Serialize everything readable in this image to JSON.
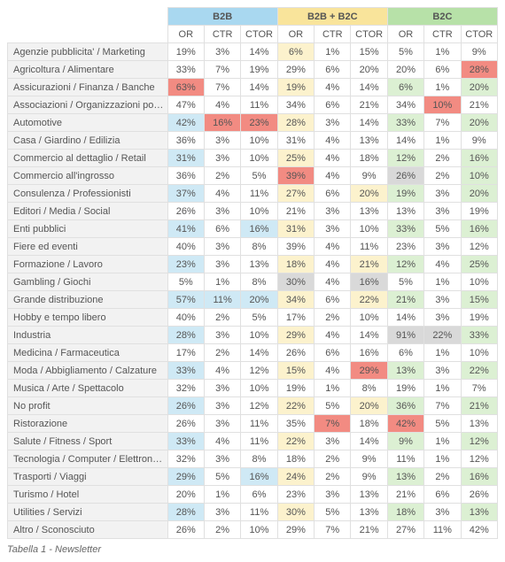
{
  "caption": "Tabella 1 - Newsletter",
  "colors": {
    "group_b2b": "#a9d8f0",
    "group_b2b_b2c": "#f9e49b",
    "group_b2c": "#b7e1a8",
    "row_label_bg": "#f2f2f2",
    "hl_b2b": "#cfe9f5",
    "hl_b2b_b2c": "#fcf2cd",
    "hl_b2c": "#dcf0d3",
    "hl_red": "#f28b82",
    "hl_gray": "#d9d9d9",
    "border": "#e0e0e0",
    "text": "#555555"
  },
  "groups": [
    {
      "label": "B2B",
      "bg": "#a9d8f0",
      "hl": "#cfe9f5"
    },
    {
      "label": "B2B + B2C",
      "bg": "#f9e49b",
      "hl": "#fcf2cd"
    },
    {
      "label": "B2C",
      "bg": "#b7e1a8",
      "hl": "#dcf0d3"
    }
  ],
  "metrics": [
    "OR",
    "CTR",
    "CTOR"
  ],
  "rows": [
    {
      "label": "Agenzie pubblicita' / Marketing",
      "vals": [
        "19%",
        "3%",
        "14%",
        "6%",
        "1%",
        "15%",
        "5%",
        "1%",
        "9%"
      ],
      "hl": [
        0,
        0,
        0,
        1,
        0,
        0,
        0,
        0,
        0
      ]
    },
    {
      "label": "Agricoltura / Alimentare",
      "vals": [
        "33%",
        "7%",
        "19%",
        "29%",
        "6%",
        "20%",
        "20%",
        "6%",
        "28%"
      ],
      "hl": [
        0,
        0,
        0,
        0,
        0,
        0,
        0,
        0,
        2
      ]
    },
    {
      "label": "Assicurazioni / Finanza / Banche",
      "vals": [
        "63%",
        "7%",
        "14%",
        "19%",
        "4%",
        "14%",
        "6%",
        "1%",
        "20%"
      ],
      "hl": [
        2,
        0,
        0,
        1,
        0,
        0,
        1,
        0,
        1
      ]
    },
    {
      "label": "Associazioni / Organizzazioni politiche",
      "vals": [
        "47%",
        "4%",
        "11%",
        "34%",
        "6%",
        "21%",
        "34%",
        "10%",
        "21%"
      ],
      "hl": [
        0,
        0,
        0,
        0,
        0,
        0,
        0,
        2,
        0
      ]
    },
    {
      "label": "Automotive",
      "vals": [
        "42%",
        "16%",
        "23%",
        "28%",
        "3%",
        "14%",
        "33%",
        "7%",
        "20%"
      ],
      "hl": [
        1,
        2,
        2,
        1,
        0,
        0,
        1,
        0,
        1
      ]
    },
    {
      "label": "Casa / Giardino / Edilizia",
      "vals": [
        "36%",
        "3%",
        "10%",
        "31%",
        "4%",
        "13%",
        "14%",
        "1%",
        "9%"
      ],
      "hl": [
        0,
        0,
        0,
        0,
        0,
        0,
        0,
        0,
        0
      ]
    },
    {
      "label": "Commercio al dettaglio / Retail",
      "vals": [
        "31%",
        "3%",
        "10%",
        "25%",
        "4%",
        "18%",
        "12%",
        "2%",
        "16%"
      ],
      "hl": [
        1,
        0,
        0,
        1,
        0,
        0,
        1,
        0,
        1
      ]
    },
    {
      "label": "Commercio all'ingrosso",
      "vals": [
        "36%",
        "2%",
        "5%",
        "39%",
        "4%",
        "9%",
        "26%",
        "2%",
        "10%"
      ],
      "hl": [
        0,
        0,
        0,
        2,
        0,
        0,
        3,
        0,
        1
      ]
    },
    {
      "label": "Consulenza / Professionisti",
      "vals": [
        "37%",
        "4%",
        "11%",
        "27%",
        "6%",
        "20%",
        "19%",
        "3%",
        "20%"
      ],
      "hl": [
        1,
        0,
        0,
        1,
        0,
        1,
        1,
        0,
        1
      ]
    },
    {
      "label": "Editori / Media / Social",
      "vals": [
        "26%",
        "3%",
        "10%",
        "21%",
        "3%",
        "13%",
        "13%",
        "3%",
        "19%"
      ],
      "hl": [
        0,
        0,
        0,
        0,
        0,
        0,
        0,
        0,
        0
      ]
    },
    {
      "label": "Enti pubblici",
      "vals": [
        "41%",
        "6%",
        "16%",
        "31%",
        "3%",
        "10%",
        "33%",
        "5%",
        "16%"
      ],
      "hl": [
        1,
        0,
        1,
        1,
        0,
        0,
        1,
        0,
        1
      ]
    },
    {
      "label": "Fiere ed eventi",
      "vals": [
        "40%",
        "3%",
        "8%",
        "39%",
        "4%",
        "11%",
        "23%",
        "3%",
        "12%"
      ],
      "hl": [
        0,
        0,
        0,
        0,
        0,
        0,
        0,
        0,
        0
      ]
    },
    {
      "label": "Formazione / Lavoro",
      "vals": [
        "23%",
        "3%",
        "13%",
        "18%",
        "4%",
        "21%",
        "12%",
        "4%",
        "25%"
      ],
      "hl": [
        1,
        0,
        0,
        1,
        0,
        1,
        1,
        0,
        1
      ]
    },
    {
      "label": "Gambling / Giochi",
      "vals": [
        "5%",
        "1%",
        "8%",
        "30%",
        "4%",
        "16%",
        "5%",
        "1%",
        "10%"
      ],
      "hl": [
        0,
        0,
        0,
        3,
        0,
        3,
        0,
        0,
        0
      ]
    },
    {
      "label": "Grande distribuzione",
      "vals": [
        "57%",
        "11%",
        "20%",
        "34%",
        "6%",
        "22%",
        "21%",
        "3%",
        "15%"
      ],
      "hl": [
        1,
        1,
        1,
        1,
        0,
        1,
        1,
        0,
        1
      ]
    },
    {
      "label": "Hobby e tempo libero",
      "vals": [
        "40%",
        "2%",
        "5%",
        "17%",
        "2%",
        "10%",
        "14%",
        "3%",
        "19%"
      ],
      "hl": [
        0,
        0,
        0,
        0,
        0,
        0,
        0,
        0,
        0
      ]
    },
    {
      "label": "Industria",
      "vals": [
        "28%",
        "3%",
        "10%",
        "29%",
        "4%",
        "14%",
        "91%",
        "22%",
        "33%"
      ],
      "hl": [
        1,
        0,
        0,
        1,
        0,
        0,
        3,
        3,
        1
      ]
    },
    {
      "label": "Medicina / Farmaceutica",
      "vals": [
        "17%",
        "2%",
        "14%",
        "26%",
        "6%",
        "16%",
        "6%",
        "1%",
        "10%"
      ],
      "hl": [
        0,
        0,
        0,
        0,
        0,
        0,
        0,
        0,
        0
      ]
    },
    {
      "label": "Moda / Abbigliamento / Calzature",
      "vals": [
        "33%",
        "4%",
        "12%",
        "15%",
        "4%",
        "29%",
        "13%",
        "3%",
        "22%"
      ],
      "hl": [
        1,
        0,
        0,
        1,
        0,
        2,
        1,
        0,
        1
      ]
    },
    {
      "label": "Musica / Arte / Spettacolo",
      "vals": [
        "32%",
        "3%",
        "10%",
        "19%",
        "1%",
        "8%",
        "19%",
        "1%",
        "7%"
      ],
      "hl": [
        0,
        0,
        0,
        0,
        0,
        0,
        0,
        0,
        0
      ]
    },
    {
      "label": "No profit",
      "vals": [
        "26%",
        "3%",
        "12%",
        "22%",
        "5%",
        "20%",
        "36%",
        "7%",
        "21%"
      ],
      "hl": [
        1,
        0,
        0,
        1,
        0,
        1,
        1,
        0,
        1
      ]
    },
    {
      "label": "Ristorazione",
      "vals": [
        "26%",
        "3%",
        "11%",
        "35%",
        "7%",
        "18%",
        "42%",
        "5%",
        "13%"
      ],
      "hl": [
        0,
        0,
        0,
        0,
        2,
        0,
        2,
        0,
        0
      ]
    },
    {
      "label": "Salute / Fitness / Sport",
      "vals": [
        "33%",
        "4%",
        "11%",
        "22%",
        "3%",
        "14%",
        "9%",
        "1%",
        "12%"
      ],
      "hl": [
        1,
        0,
        0,
        1,
        0,
        0,
        1,
        0,
        1
      ]
    },
    {
      "label": "Tecnologia / Computer / Elettronica",
      "vals": [
        "32%",
        "3%",
        "8%",
        "18%",
        "2%",
        "9%",
        "11%",
        "1%",
        "12%"
      ],
      "hl": [
        0,
        0,
        0,
        0,
        0,
        0,
        0,
        0,
        0
      ]
    },
    {
      "label": "Trasporti / Viaggi",
      "vals": [
        "29%",
        "5%",
        "16%",
        "24%",
        "2%",
        "9%",
        "13%",
        "2%",
        "16%"
      ],
      "hl": [
        1,
        0,
        1,
        1,
        0,
        0,
        1,
        0,
        1
      ]
    },
    {
      "label": "Turismo / Hotel",
      "vals": [
        "20%",
        "1%",
        "6%",
        "23%",
        "3%",
        "13%",
        "21%",
        "6%",
        "26%"
      ],
      "hl": [
        0,
        0,
        0,
        0,
        0,
        0,
        0,
        0,
        0
      ]
    },
    {
      "label": "Utilities / Servizi",
      "vals": [
        "28%",
        "3%",
        "11%",
        "30%",
        "5%",
        "13%",
        "18%",
        "3%",
        "13%"
      ],
      "hl": [
        1,
        0,
        0,
        1,
        0,
        0,
        1,
        0,
        1
      ]
    },
    {
      "label": "Altro / Sconosciuto",
      "vals": [
        "26%",
        "2%",
        "10%",
        "29%",
        "7%",
        "21%",
        "27%",
        "11%",
        "42%"
      ],
      "hl": [
        0,
        0,
        0,
        0,
        0,
        0,
        0,
        0,
        0
      ]
    }
  ]
}
